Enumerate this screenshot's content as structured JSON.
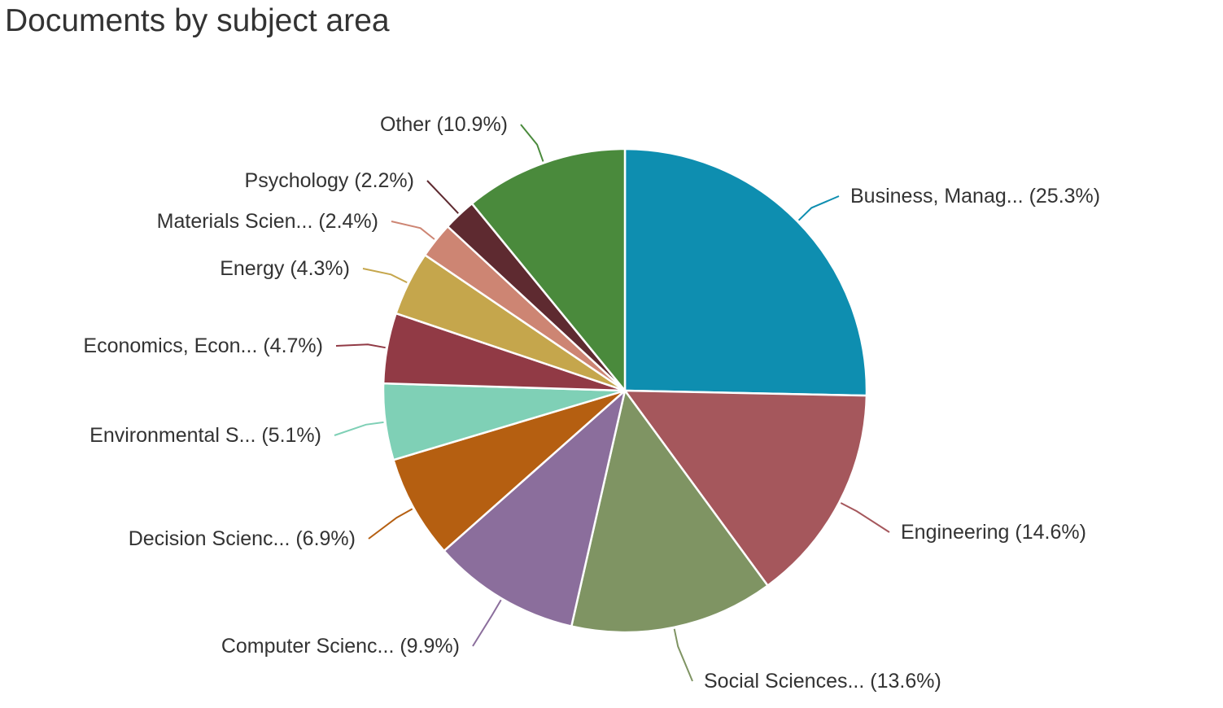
{
  "chart_data": {
    "type": "pie",
    "title": "Documents by subject area",
    "start": "12 o'clock",
    "direction": "clockwise",
    "slices": [
      {
        "label": "Business, Manag...",
        "value": 25.3,
        "display": "(25.3%)",
        "color": "#0e8eb0"
      },
      {
        "label": "Engineering",
        "value": 14.6,
        "display": "(14.6%)",
        "color": "#a5575c"
      },
      {
        "label": "Social Sciences...",
        "value": 13.6,
        "display": "(13.6%)",
        "color": "#7f9463"
      },
      {
        "label": "Computer Scienc...",
        "value": 9.9,
        "display": "(9.9%)",
        "color": "#8b6e9c"
      },
      {
        "label": "Decision Scienc...",
        "value": 6.9,
        "display": "(6.9%)",
        "color": "#b55f11"
      },
      {
        "label": "Environmental S...",
        "value": 5.1,
        "display": "(5.1%)",
        "color": "#7fd0b6"
      },
      {
        "label": "Economics, Econ...",
        "value": 4.7,
        "display": "(4.7%)",
        "color": "#913a45"
      },
      {
        "label": "Energy",
        "value": 4.3,
        "display": "(4.3%)",
        "color": "#c5a64c"
      },
      {
        "label": "Materials Scien...",
        "value": 2.4,
        "display": "(2.4%)",
        "color": "#cd8573"
      },
      {
        "label": "Psychology",
        "value": 2.2,
        "display": "(2.2%)",
        "color": "#5e2a30"
      },
      {
        "label": "Other",
        "value": 10.9,
        "display": "(10.9%)",
        "color": "#4a8a3c"
      }
    ]
  }
}
